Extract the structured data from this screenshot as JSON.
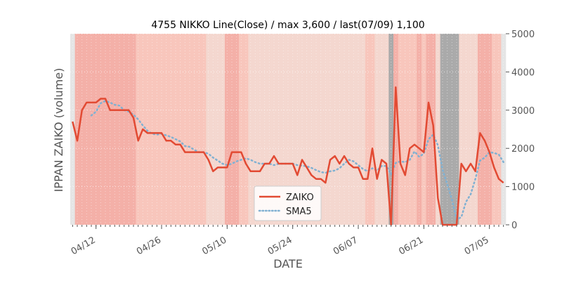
{
  "chart_data": {
    "type": "line",
    "title": "4755 NIKKO Line(Close) / max 3,600 / last(07/09) 1,100",
    "xlabel": "DATE",
    "ylabel": "IPPAN ZAIKO (volume)",
    "ylim": [
      0,
      5000
    ],
    "yticks": [
      0,
      1000,
      2000,
      3000,
      4000,
      5000
    ],
    "y_axis_side": "right",
    "xticks": [
      {
        "label": "04/12",
        "index": 5
      },
      {
        "label": "04/26",
        "index": 19
      },
      {
        "label": "05/10",
        "index": 33
      },
      {
        "label": "05/24",
        "index": 47
      },
      {
        "label": "06/07",
        "index": 61
      },
      {
        "label": "06/21",
        "index": 75
      },
      {
        "label": "07/05",
        "index": 89
      }
    ],
    "grid": true,
    "legend_position": "lower center",
    "series": [
      {
        "name": "ZAIKO",
        "style": "solid",
        "color": "#e24a33",
        "values": [
          2700,
          2200,
          3000,
          3200,
          3200,
          3200,
          3300,
          3300,
          3000,
          3000,
          3000,
          3000,
          3000,
          2800,
          2200,
          2500,
          2400,
          2400,
          2400,
          2400,
          2200,
          2200,
          2100,
          2100,
          1900,
          1900,
          1900,
          1900,
          1900,
          1700,
          1400,
          1500,
          1500,
          1500,
          1900,
          1900,
          1900,
          1600,
          1400,
          1400,
          1400,
          1600,
          1600,
          1800,
          1600,
          1600,
          1600,
          1600,
          1300,
          1700,
          1500,
          1300,
          1200,
          1200,
          1100,
          1700,
          1800,
          1600,
          1800,
          1600,
          1500,
          1500,
          1200,
          1200,
          2000,
          1200,
          1700,
          1600,
          0,
          3600,
          1600,
          1300,
          2000,
          2100,
          2000,
          1900,
          3200,
          2600,
          700,
          0,
          0,
          0,
          0,
          1600,
          1400,
          1600,
          1400,
          2400,
          2200,
          1900,
          1500,
          1200,
          1100
        ]
      },
      {
        "name": "SMA5",
        "style": "dotted",
        "color": "#81b1d2",
        "values": [
          null,
          null,
          null,
          null,
          2860,
          2960,
          3180,
          3240,
          3200,
          3140,
          3120,
          3000,
          2960,
          2880,
          2760,
          2600,
          2460,
          2380,
          2360,
          2380,
          2340,
          2300,
          2240,
          2180,
          2060,
          2040,
          1960,
          1900,
          1900,
          1860,
          1760,
          1680,
          1600,
          1560,
          1600,
          1660,
          1700,
          1740,
          1700,
          1640,
          1600,
          1600,
          1600,
          1560,
          1600,
          1600,
          1600,
          1600,
          1560,
          1550,
          1530,
          1490,
          1430,
          1380,
          1360,
          1400,
          1420,
          1480,
          1600,
          1700,
          1660,
          1560,
          1460,
          1400,
          1480,
          1420,
          1540,
          1540,
          1320,
          1620,
          1660,
          1640,
          1700,
          1920,
          1780,
          1860,
          2240,
          2360,
          2080,
          1440,
          1060,
          660,
          140,
          200,
          600,
          800,
          1200,
          1680,
          1760,
          1900,
          1880,
          1840,
          1640
        ]
      }
    ],
    "band_colors": [
      "#e5e5e5",
      "#f4b0a8",
      "#f8c6bc",
      "#f4d7cf",
      "#aaaaaa"
    ],
    "bands": [
      0,
      1,
      1,
      1,
      1,
      1,
      1,
      1,
      1,
      1,
      1,
      1,
      1,
      1,
      2,
      2,
      2,
      2,
      2,
      2,
      2,
      2,
      2,
      2,
      2,
      2,
      2,
      2,
      2,
      3,
      3,
      3,
      3,
      1,
      1,
      1,
      2,
      2,
      3,
      3,
      3,
      3,
      3,
      3,
      3,
      3,
      3,
      3,
      3,
      3,
      3,
      3,
      3,
      3,
      3,
      3,
      3,
      3,
      3,
      3,
      3,
      3,
      3,
      2,
      2,
      3,
      3,
      3,
      4,
      1,
      2,
      2,
      2,
      2,
      1,
      2,
      1,
      1,
      3,
      4,
      4,
      4,
      4,
      3,
      3,
      3,
      3,
      1,
      1,
      1,
      2,
      2,
      0
    ]
  }
}
